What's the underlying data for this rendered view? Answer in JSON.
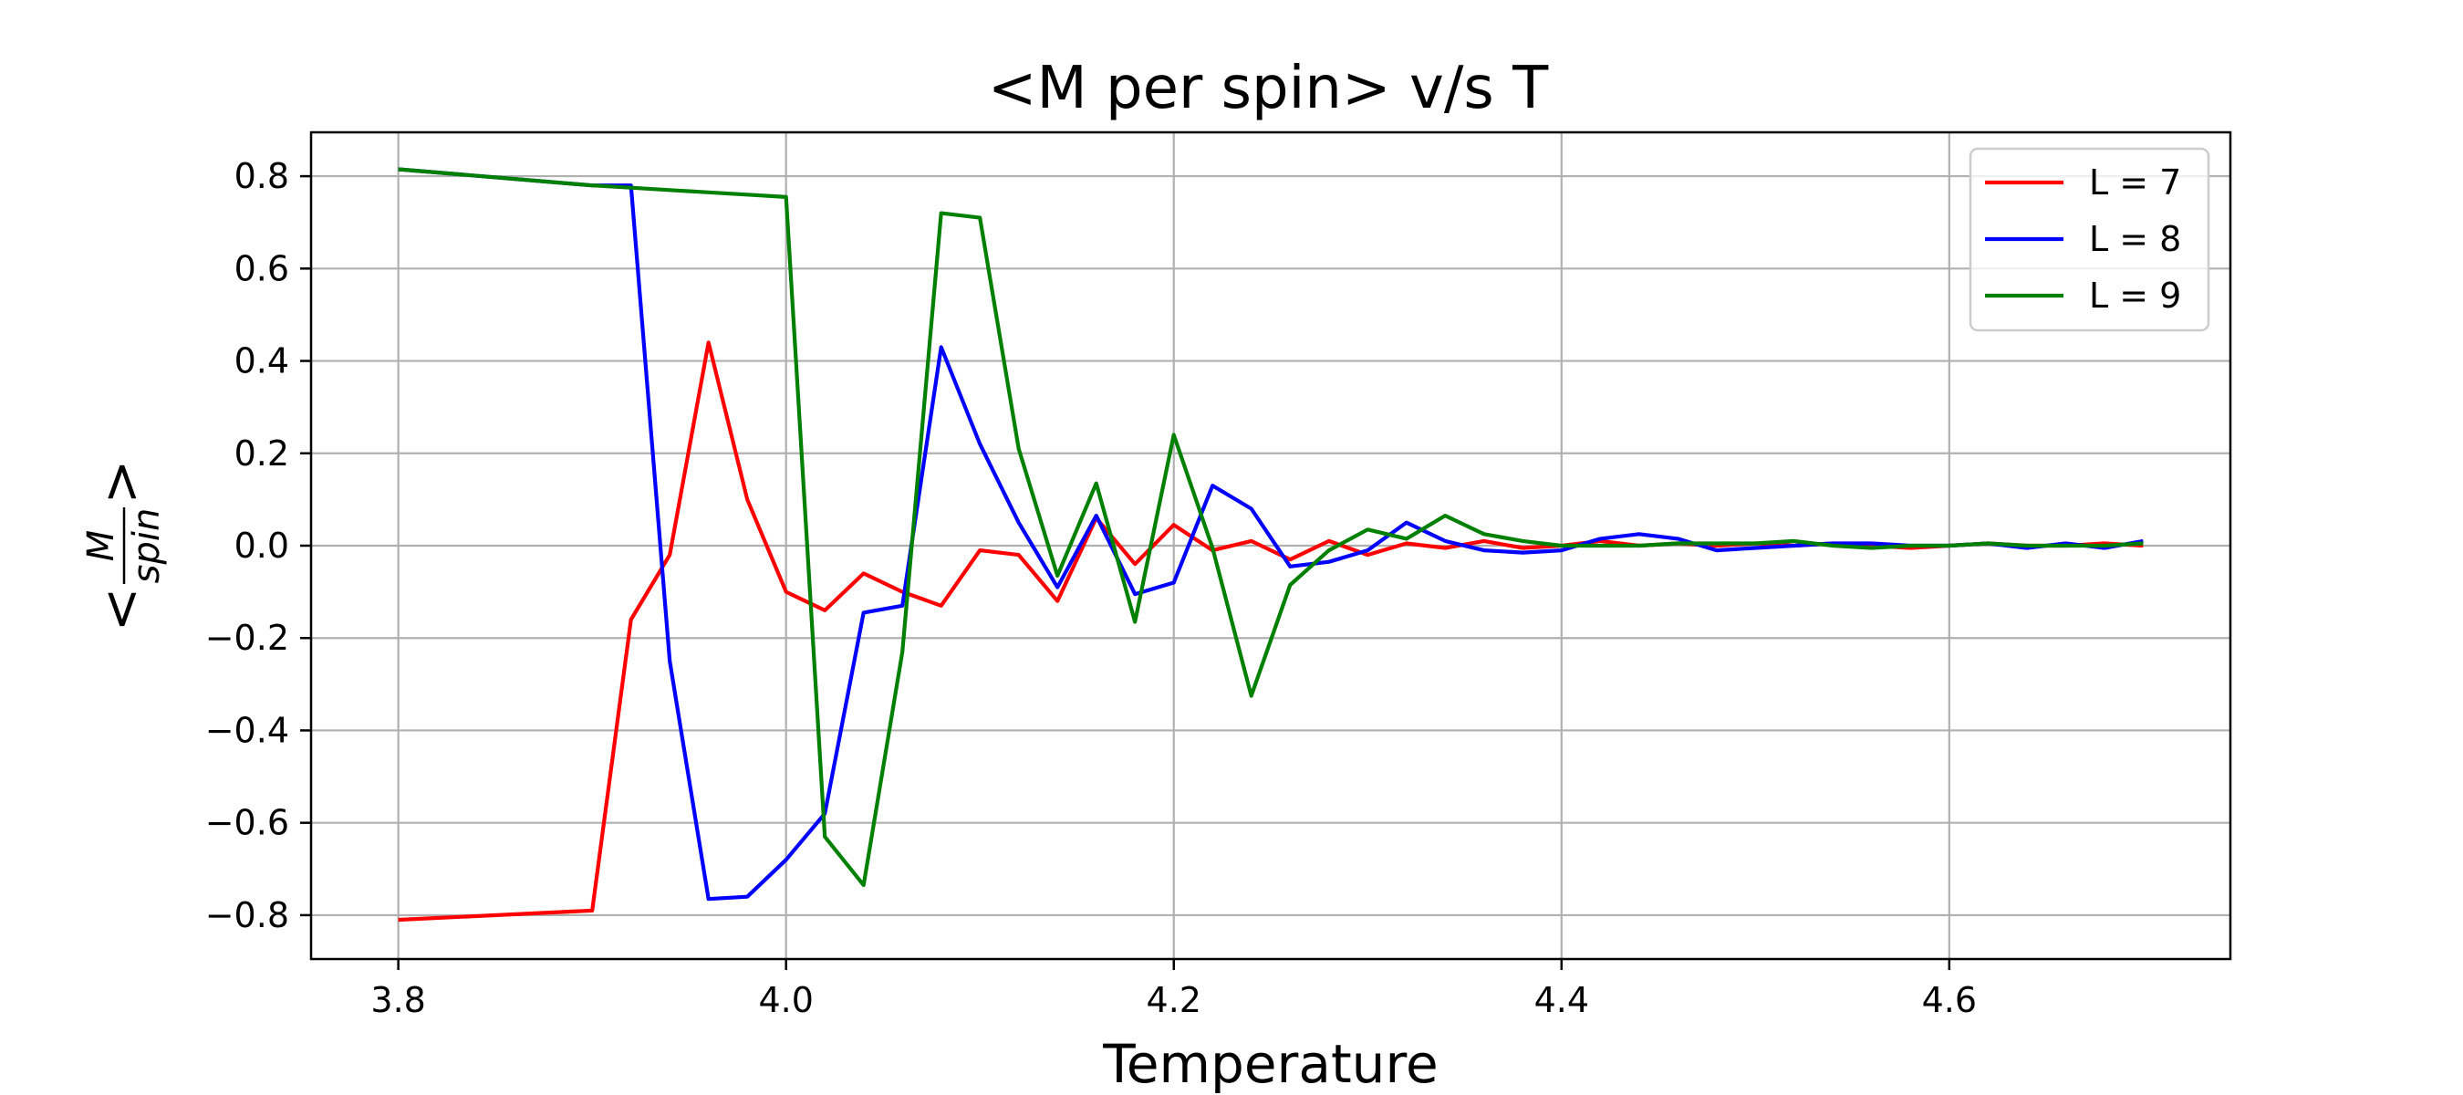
{
  "chart_data": {
    "type": "line",
    "title": "<M per spin> v/s T",
    "xlabel": "Temperature",
    "ylabel": "< M/spin >",
    "ylabel_parts": {
      "left": "<",
      "numerator": "M",
      "denominator": "spin",
      "right": ">"
    },
    "xlim": [
      3.755,
      4.745
    ],
    "ylim": [
      -0.895,
      0.895
    ],
    "xticks": [
      3.8,
      4.0,
      4.2,
      4.4,
      4.6
    ],
    "xtick_labels": [
      "3.8",
      "4.0",
      "4.2",
      "4.4",
      "4.6"
    ],
    "yticks": [
      0.8,
      0.6,
      0.4,
      0.2,
      0.0,
      -0.2,
      -0.4,
      -0.6,
      -0.8
    ],
    "ytick_labels": [
      "0.8",
      "0.6",
      "0.4",
      "0.2",
      "0.0",
      "−0.2",
      "−0.4",
      "−0.6",
      "−0.8"
    ],
    "grid": true,
    "legend_position": "top-right",
    "x": [
      3.8,
      3.9,
      3.92,
      3.94,
      3.96,
      3.98,
      4.0,
      4.02,
      4.04,
      4.06,
      4.08,
      4.1,
      4.12,
      4.14,
      4.16,
      4.18,
      4.2,
      4.22,
      4.24,
      4.26,
      4.28,
      4.3,
      4.32,
      4.34,
      4.36,
      4.38,
      4.4,
      4.42,
      4.44,
      4.46,
      4.48,
      4.5,
      4.52,
      4.54,
      4.56,
      4.58,
      4.6,
      4.62,
      4.64,
      4.66,
      4.68,
      4.7
    ],
    "series": [
      {
        "name": "L = 7",
        "color": "#ff0000",
        "values": [
          -0.81,
          -0.79,
          -0.16,
          -0.02,
          0.44,
          0.1,
          -0.1,
          -0.14,
          -0.06,
          -0.1,
          -0.13,
          -0.01,
          -0.02,
          -0.12,
          0.06,
          -0.04,
          0.045,
          -0.01,
          0.01,
          -0.03,
          0.01,
          -0.02,
          0.005,
          -0.005,
          0.01,
          -0.005,
          0.0,
          0.01,
          0.0,
          0.005,
          0.0,
          0.005,
          0.0,
          0.005,
          0.0,
          -0.005,
          0.0,
          0.005,
          0.0,
          0.0,
          0.005,
          0.0
        ]
      },
      {
        "name": "L = 8",
        "color": "#0000ff",
        "values": [
          0.815,
          0.78,
          0.78,
          -0.25,
          -0.765,
          -0.76,
          -0.68,
          -0.58,
          -0.145,
          -0.13,
          0.43,
          0.22,
          0.05,
          -0.09,
          0.065,
          -0.105,
          -0.08,
          0.13,
          0.08,
          -0.045,
          -0.035,
          -0.01,
          0.05,
          0.01,
          -0.01,
          -0.015,
          -0.01,
          0.015,
          0.025,
          0.015,
          -0.01,
          -0.005,
          0.0,
          0.005,
          0.005,
          0.0,
          0.0,
          0.005,
          -0.005,
          0.005,
          -0.005,
          0.01
        ]
      },
      {
        "name": "L = 9",
        "color": "#008000",
        "values": [
          0.815,
          0.78,
          0.775,
          0.77,
          0.765,
          0.76,
          0.755,
          -0.63,
          -0.735,
          -0.23,
          0.72,
          0.71,
          0.21,
          -0.065,
          0.135,
          -0.165,
          0.24,
          -0.005,
          -0.325,
          -0.085,
          -0.01,
          0.035,
          0.015,
          0.065,
          0.025,
          0.01,
          0.0,
          0.0,
          0.0,
          0.005,
          0.005,
          0.005,
          0.01,
          0.0,
          -0.005,
          0.0,
          0.0,
          0.005,
          0.0,
          0.0,
          0.0,
          0.005
        ]
      }
    ]
  }
}
